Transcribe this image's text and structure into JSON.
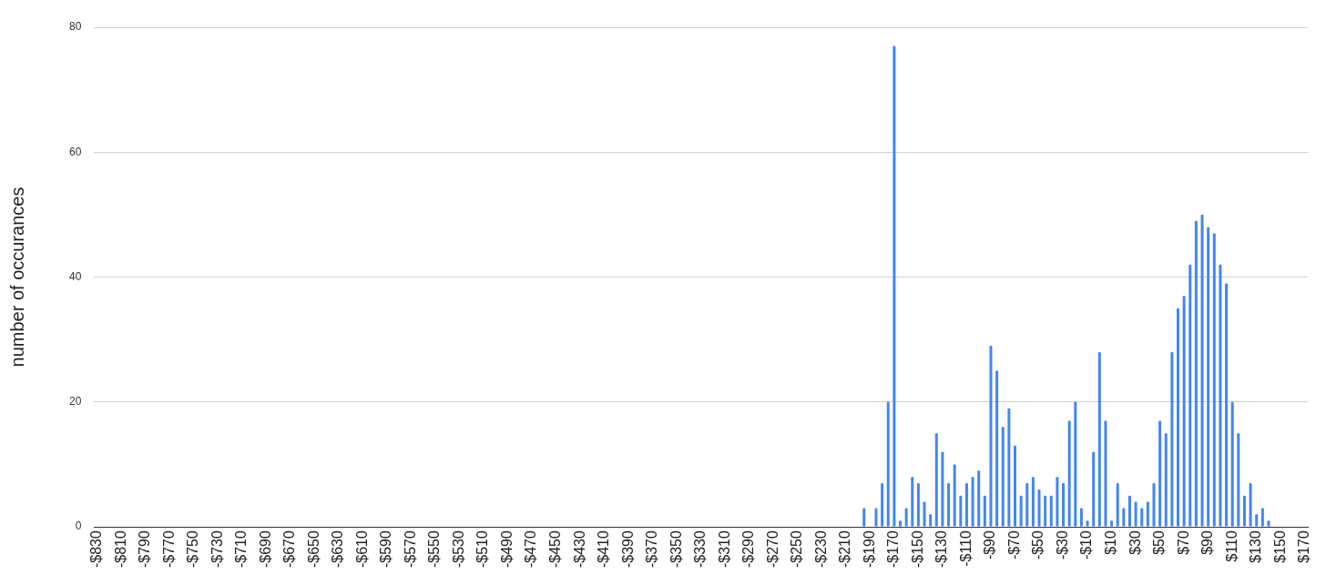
{
  "chart_data": {
    "type": "bar",
    "ylabel": "number of occurances",
    "color": "#4285f4",
    "grid": "y",
    "legend": false,
    "ylim": [
      0,
      80
    ],
    "yticks": [
      0,
      20,
      40,
      60,
      80
    ],
    "categories": [
      "-$830",
      null,
      null,
      null,
      "-$810",
      null,
      null,
      null,
      "-$790",
      null,
      null,
      null,
      "-$770",
      null,
      null,
      null,
      "-$750",
      null,
      null,
      null,
      "-$730",
      null,
      null,
      null,
      "-$710",
      null,
      null,
      null,
      "-$690",
      null,
      null,
      null,
      "-$670",
      null,
      null,
      null,
      "-$650",
      null,
      null,
      null,
      "-$630",
      null,
      null,
      null,
      "-$610",
      null,
      null,
      null,
      "-$590",
      null,
      null,
      null,
      "-$570",
      null,
      null,
      null,
      "-$550",
      null,
      null,
      null,
      "-$530",
      null,
      null,
      null,
      "-$510",
      null,
      null,
      null,
      "-$490",
      null,
      null,
      null,
      "-$470",
      null,
      null,
      null,
      "-$450",
      null,
      null,
      null,
      "-$430",
      null,
      null,
      null,
      "-$410",
      null,
      null,
      null,
      "-$390",
      null,
      null,
      null,
      "-$370",
      null,
      null,
      null,
      "-$350",
      null,
      null,
      null,
      "-$330",
      null,
      null,
      null,
      "-$310",
      null,
      null,
      null,
      "-$290",
      null,
      null,
      null,
      "-$270",
      null,
      null,
      null,
      "-$250",
      null,
      null,
      null,
      "-$230",
      null,
      null,
      null,
      "-$210",
      null,
      null,
      null,
      "-$190",
      null,
      null,
      null,
      "-$170",
      null,
      null,
      null,
      "-$150",
      null,
      null,
      null,
      "-$130",
      null,
      null,
      null,
      "-$110",
      null,
      null,
      null,
      "-$90",
      null,
      null,
      null,
      "-$70",
      null,
      null,
      null,
      "-$50",
      null,
      null,
      null,
      "-$30",
      null,
      null,
      null,
      "-$10",
      null,
      null,
      null,
      "$10",
      null,
      null,
      null,
      "$30",
      null,
      null,
      null,
      "$50",
      null,
      null,
      null,
      "$70",
      null,
      null,
      null,
      "$90",
      null,
      null,
      null,
      "$110",
      null,
      null,
      null,
      "$130",
      null,
      null,
      null,
      "$150",
      null,
      null,
      null,
      "$170"
    ],
    "values": [
      0,
      0,
      0,
      0,
      0,
      0,
      0,
      0,
      0,
      0,
      0,
      0,
      0,
      0,
      0,
      0,
      0,
      0,
      0,
      0,
      0,
      0,
      0,
      0,
      0,
      0,
      0,
      0,
      0,
      0,
      0,
      0,
      0,
      0,
      0,
      0,
      0,
      0,
      0,
      0,
      0,
      0,
      0,
      0,
      0,
      0,
      0,
      0,
      0,
      0,
      0,
      0,
      0,
      0,
      0,
      0,
      0,
      0,
      0,
      0,
      0,
      0,
      0,
      0,
      0,
      0,
      0,
      0,
      0,
      0,
      0,
      0,
      0,
      0,
      0,
      0,
      0,
      0,
      0,
      0,
      0,
      0,
      0,
      0,
      0,
      0,
      0,
      0,
      0,
      0,
      0,
      0,
      0,
      0,
      0,
      0,
      0,
      0,
      0,
      0,
      0,
      0,
      0,
      0,
      0,
      0,
      0,
      0,
      0,
      0,
      0,
      0,
      0,
      0,
      0,
      0,
      0,
      0,
      0,
      0,
      0,
      0,
      0,
      0,
      0,
      0,
      0,
      3,
      0,
      3,
      7,
      20,
      77,
      1,
      3,
      8,
      7,
      4,
      2,
      15,
      12,
      7,
      10,
      5,
      7,
      8,
      9,
      5,
      29,
      25,
      16,
      19,
      13,
      5,
      7,
      8,
      6,
      5,
      5,
      8,
      7,
      17,
      20,
      3,
      1,
      12,
      28,
      17,
      1,
      7,
      3,
      5,
      4,
      3,
      4,
      7,
      17,
      15,
      28,
      35,
      37,
      42,
      49,
      50,
      48,
      47,
      42,
      39,
      20,
      15,
      5,
      7,
      2,
      3,
      1,
      0,
      0,
      0,
      0,
      0,
      0
    ]
  }
}
